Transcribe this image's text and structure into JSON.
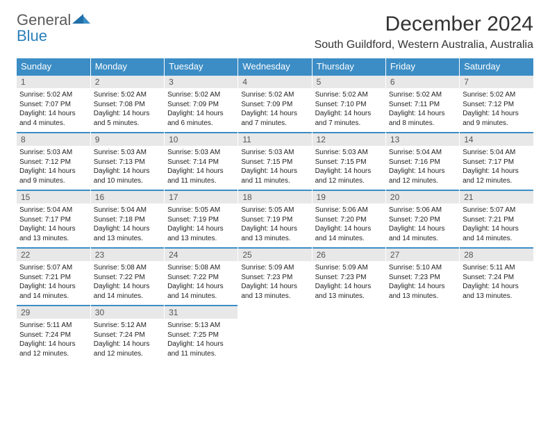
{
  "logo": {
    "general": "General",
    "blue": "Blue"
  },
  "title": "December 2024",
  "location": "South Guildford, Western Australia, Australia",
  "colors": {
    "header_bg": "#3c8dc5",
    "header_fg": "#ffffff",
    "daynum_bg": "#e8e8e8",
    "row_top_border": "#3c8dc5",
    "logo_gray": "#5a5a5a",
    "logo_blue": "#2a7fba"
  },
  "weekdays": [
    "Sunday",
    "Monday",
    "Tuesday",
    "Wednesday",
    "Thursday",
    "Friday",
    "Saturday"
  ],
  "weeks": [
    [
      {
        "n": "1",
        "sr": "5:02 AM",
        "ss": "7:07 PM",
        "dl": "14 hours and 4 minutes."
      },
      {
        "n": "2",
        "sr": "5:02 AM",
        "ss": "7:08 PM",
        "dl": "14 hours and 5 minutes."
      },
      {
        "n": "3",
        "sr": "5:02 AM",
        "ss": "7:09 PM",
        "dl": "14 hours and 6 minutes."
      },
      {
        "n": "4",
        "sr": "5:02 AM",
        "ss": "7:09 PM",
        "dl": "14 hours and 7 minutes."
      },
      {
        "n": "5",
        "sr": "5:02 AM",
        "ss": "7:10 PM",
        "dl": "14 hours and 7 minutes."
      },
      {
        "n": "6",
        "sr": "5:02 AM",
        "ss": "7:11 PM",
        "dl": "14 hours and 8 minutes."
      },
      {
        "n": "7",
        "sr": "5:02 AM",
        "ss": "7:12 PM",
        "dl": "14 hours and 9 minutes."
      }
    ],
    [
      {
        "n": "8",
        "sr": "5:03 AM",
        "ss": "7:12 PM",
        "dl": "14 hours and 9 minutes."
      },
      {
        "n": "9",
        "sr": "5:03 AM",
        "ss": "7:13 PM",
        "dl": "14 hours and 10 minutes."
      },
      {
        "n": "10",
        "sr": "5:03 AM",
        "ss": "7:14 PM",
        "dl": "14 hours and 11 minutes."
      },
      {
        "n": "11",
        "sr": "5:03 AM",
        "ss": "7:15 PM",
        "dl": "14 hours and 11 minutes."
      },
      {
        "n": "12",
        "sr": "5:03 AM",
        "ss": "7:15 PM",
        "dl": "14 hours and 12 minutes."
      },
      {
        "n": "13",
        "sr": "5:04 AM",
        "ss": "7:16 PM",
        "dl": "14 hours and 12 minutes."
      },
      {
        "n": "14",
        "sr": "5:04 AM",
        "ss": "7:17 PM",
        "dl": "14 hours and 12 minutes."
      }
    ],
    [
      {
        "n": "15",
        "sr": "5:04 AM",
        "ss": "7:17 PM",
        "dl": "14 hours and 13 minutes."
      },
      {
        "n": "16",
        "sr": "5:04 AM",
        "ss": "7:18 PM",
        "dl": "14 hours and 13 minutes."
      },
      {
        "n": "17",
        "sr": "5:05 AM",
        "ss": "7:19 PM",
        "dl": "14 hours and 13 minutes."
      },
      {
        "n": "18",
        "sr": "5:05 AM",
        "ss": "7:19 PM",
        "dl": "14 hours and 13 minutes."
      },
      {
        "n": "19",
        "sr": "5:06 AM",
        "ss": "7:20 PM",
        "dl": "14 hours and 14 minutes."
      },
      {
        "n": "20",
        "sr": "5:06 AM",
        "ss": "7:20 PM",
        "dl": "14 hours and 14 minutes."
      },
      {
        "n": "21",
        "sr": "5:07 AM",
        "ss": "7:21 PM",
        "dl": "14 hours and 14 minutes."
      }
    ],
    [
      {
        "n": "22",
        "sr": "5:07 AM",
        "ss": "7:21 PM",
        "dl": "14 hours and 14 minutes."
      },
      {
        "n": "23",
        "sr": "5:08 AM",
        "ss": "7:22 PM",
        "dl": "14 hours and 14 minutes."
      },
      {
        "n": "24",
        "sr": "5:08 AM",
        "ss": "7:22 PM",
        "dl": "14 hours and 14 minutes."
      },
      {
        "n": "25",
        "sr": "5:09 AM",
        "ss": "7:23 PM",
        "dl": "14 hours and 13 minutes."
      },
      {
        "n": "26",
        "sr": "5:09 AM",
        "ss": "7:23 PM",
        "dl": "14 hours and 13 minutes."
      },
      {
        "n": "27",
        "sr": "5:10 AM",
        "ss": "7:23 PM",
        "dl": "14 hours and 13 minutes."
      },
      {
        "n": "28",
        "sr": "5:11 AM",
        "ss": "7:24 PM",
        "dl": "14 hours and 13 minutes."
      }
    ],
    [
      {
        "n": "29",
        "sr": "5:11 AM",
        "ss": "7:24 PM",
        "dl": "14 hours and 12 minutes."
      },
      {
        "n": "30",
        "sr": "5:12 AM",
        "ss": "7:24 PM",
        "dl": "14 hours and 12 minutes."
      },
      {
        "n": "31",
        "sr": "5:13 AM",
        "ss": "7:25 PM",
        "dl": "14 hours and 11 minutes."
      },
      null,
      null,
      null,
      null
    ]
  ],
  "labels": {
    "sunrise": "Sunrise:",
    "sunset": "Sunset:",
    "daylight": "Daylight:"
  }
}
